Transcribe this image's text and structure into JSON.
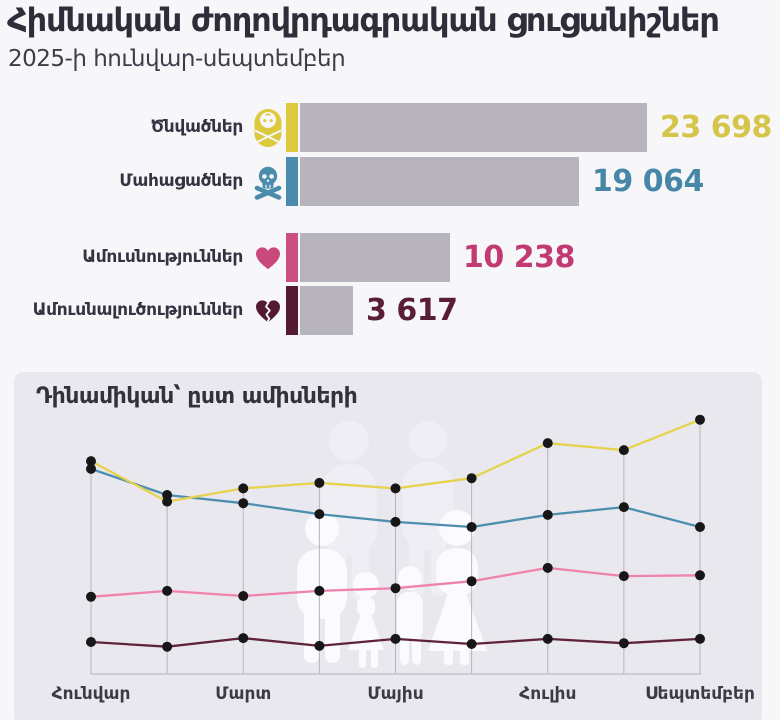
{
  "header": {
    "title": "Հիմնական ժողովրդագրական ցուցանիշներ",
    "subtitle": "2025-ի հունվար-սեպտեմբեր"
  },
  "colors": {
    "page_bg": "#f7f6f9",
    "panel_bg": "#e9e8ef",
    "bar_track": "#b7b4bd",
    "title_text": "#2e2d39",
    "label_text": "#343341",
    "month_label_text": "#3b3a46",
    "gridline": "#b5b4bc",
    "baseline": "#bdbcc4",
    "point_dot": "#171717",
    "births": {
      "accent": "#ddc93e",
      "value_text": "#d5c54a",
      "line": "#e6d24c",
      "icon": "#ddc93e"
    },
    "deaths": {
      "accent": "#4a8cab",
      "value_text": "#4687a8",
      "line": "#4d8fae",
      "icon": "#4a8cab"
    },
    "marriages": {
      "accent": "#cc4f81",
      "value_text": "#c23a72",
      "line": "#f083ad",
      "icon": "#c84a7c"
    },
    "divorces": {
      "accent": "#531a31",
      "value_text": "#5a1d37",
      "line": "#5e2239",
      "icon": "#531a31"
    }
  },
  "bars": {
    "rows": [
      {
        "key": "births",
        "label": "Ծնվածներ",
        "icon": "baby-icon",
        "value": 23698,
        "value_display": "23 698"
      },
      {
        "key": "deaths",
        "label": "Մահացածներ",
        "icon": "skull-icon",
        "value": 19064,
        "value_display": "19 064"
      },
      {
        "key": "marriages",
        "label": "Ամուսնություններ",
        "icon": "heart-icon",
        "value": 10238,
        "value_display": "10 238"
      },
      {
        "key": "divorces",
        "label": "Ամուսնալուծություններ",
        "icon": "broken-heart-icon",
        "value": 3617,
        "value_display": "3 617"
      }
    ]
  },
  "panel": {
    "title": "Դինամիկան՝ ըստ ամիսների"
  },
  "chart_data": [
    {
      "type": "bar",
      "orientation": "horizontal",
      "categories": [
        "Ծնվածներ",
        "Մահացածներ",
        "Ամուսնություններ",
        "Ամուսնալուծություններ"
      ],
      "values": [
        23698,
        19064,
        10238,
        3617
      ],
      "value_labels": [
        "23 698",
        "19 064",
        "10 238",
        "3 617"
      ],
      "title": "Հիմնական ժողովրդագրական ցուցանիշներ",
      "subtitle": "2025-ի հունվար-սեպտեմբեր"
    },
    {
      "type": "line",
      "title": "Դինամիկան՝ ըստ ամիսների",
      "x_tick_labels": [
        "Հունվար",
        "Մարտ",
        "Մայիս",
        "Հուլիս",
        "Սեպտեմբեր"
      ],
      "x_points_count": 9,
      "grid": "vertical-only",
      "legend": "none",
      "series": [
        {
          "key": "births",
          "name": "Ծնվածներ",
          "values": [
            2730,
            2210,
            2380,
            2450,
            2380,
            2510,
            2960,
            2870,
            3260
          ]
        },
        {
          "key": "deaths",
          "name": "Մահացածներ",
          "values": [
            2630,
            2295,
            2190,
            2050,
            1950,
            1885,
            2040,
            2140,
            1885
          ]
        },
        {
          "key": "marriages",
          "name": "Ամուսնություններ",
          "values": [
            990,
            1065,
            1000,
            1065,
            1100,
            1190,
            1360,
            1255,
            1265
          ]
        },
        {
          "key": "divorces",
          "name": "Ամուսնալուծություններ",
          "values": [
            410,
            350,
            460,
            360,
            450,
            385,
            450,
            395,
            450
          ]
        }
      ]
    }
  ]
}
